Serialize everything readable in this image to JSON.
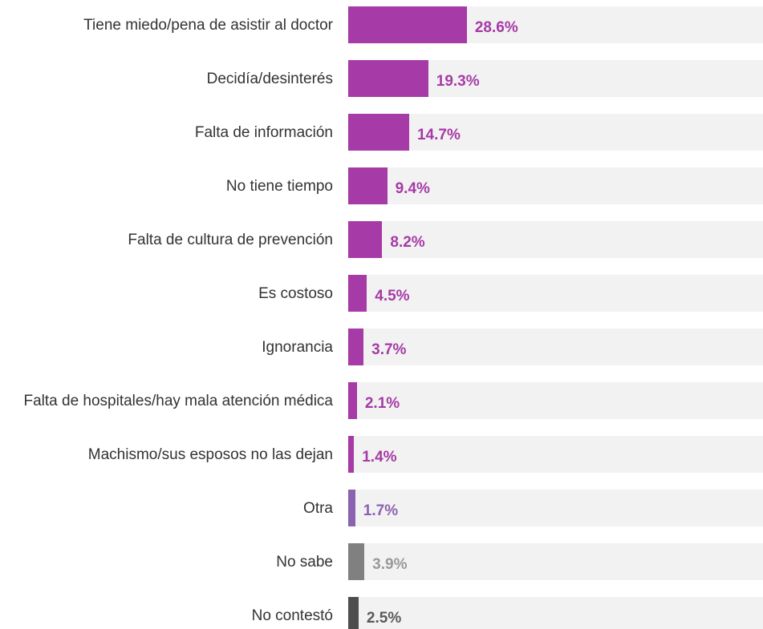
{
  "chart_data": {
    "type": "bar",
    "orientation": "horizontal",
    "categories": [
      "Tiene miedo/pena de asistir al doctor",
      "Decidía/desinterés",
      "Falta de información",
      "No tiene tiempo",
      "Falta de cultura de prevención",
      "Es costoso",
      "Ignorancia",
      "Falta de hospitales/hay mala atención médica",
      "Machismo/sus esposos no las dejan",
      "Otra",
      "No sabe",
      "No contestó"
    ],
    "values": [
      28.6,
      19.3,
      14.7,
      9.4,
      8.2,
      4.5,
      3.7,
      2.1,
      1.4,
      1.7,
      3.9,
      2.5
    ],
    "value_labels": [
      "28.6%",
      "19.3%",
      "14.7%",
      "9.4%",
      "8.2%",
      "4.5%",
      "3.7%",
      "2.1%",
      "1.4%",
      "1.7%",
      "3.9%",
      "2.5%"
    ],
    "colors": [
      "#a63aa6",
      "#a63aa6",
      "#a63aa6",
      "#a63aa6",
      "#a63aa6",
      "#a63aa6",
      "#a63aa6",
      "#a63aa6",
      "#a63aa6",
      "#8a62b0",
      "#808080",
      "#4d4d4d"
    ],
    "background_color": "#f2f2f2",
    "xlim": [
      0,
      100
    ]
  }
}
